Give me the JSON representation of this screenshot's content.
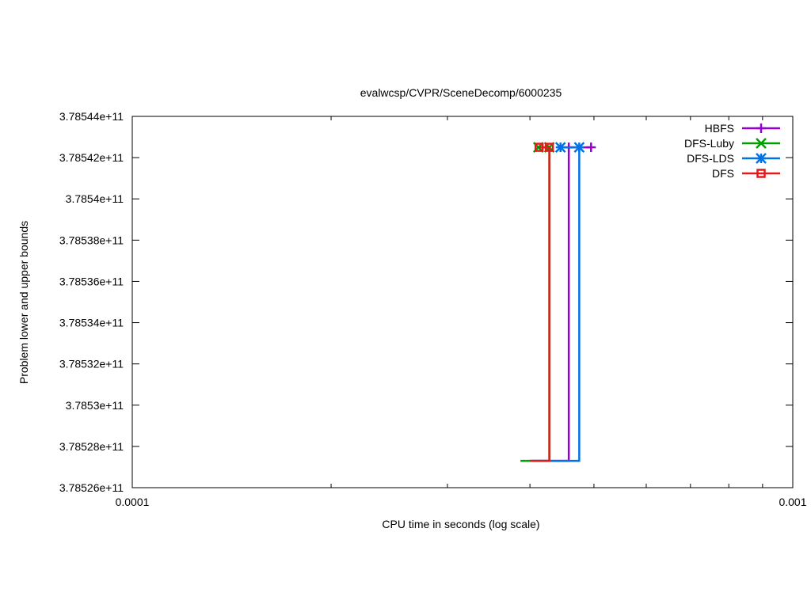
{
  "chart_data": {
    "type": "line",
    "title": "evalwcsp/CVPR/SceneDecomp/6000235",
    "xlabel": "CPU time in seconds (log scale)",
    "ylabel": "Problem lower and upper bounds",
    "x_scale": "log",
    "xlim": [
      0.0001,
      0.001
    ],
    "ylim": [
      378526000000,
      378544000000
    ],
    "x_ticks": [
      {
        "value": 0.0001,
        "label": "0.0001"
      },
      {
        "value": 0.001,
        "label": "0.001"
      }
    ],
    "y_ticks": [
      {
        "value": 378526000000,
        "label": "3.78526e+11"
      },
      {
        "value": 378528000000,
        "label": "3.78528e+11"
      },
      {
        "value": 378530000000,
        "label": "3.7853e+11"
      },
      {
        "value": 378532000000,
        "label": "3.78532e+11"
      },
      {
        "value": 378534000000,
        "label": "3.78534e+11"
      },
      {
        "value": 378536000000,
        "label": "3.78536e+11"
      },
      {
        "value": 378538000000,
        "label": "3.78538e+11"
      },
      {
        "value": 378540000000,
        "label": "3.7854e+11"
      },
      {
        "value": 378542000000,
        "label": "3.78542e+11"
      },
      {
        "value": 378544000000,
        "label": "3.78544e+11"
      }
    ],
    "legend_position": "top-right",
    "grid": false,
    "series": [
      {
        "name": "HBFS",
        "color": "#9400d3",
        "marker": "plus",
        "lower": [
          [
            0.0004,
            378527300000
          ],
          [
            0.000458,
            378527300000
          ]
        ],
        "upper": [
          [
            0.000458,
            378542500000
          ],
          [
            0.000495,
            378542500000
          ]
        ]
      },
      {
        "name": "DFS-Luby",
        "color": "#009e00",
        "marker": "cross",
        "lower": [
          [
            0.000387,
            378527300000
          ],
          [
            0.000428,
            378527300000
          ]
        ],
        "upper": [
          [
            0.000428,
            378542500000
          ],
          [
            0.000412,
            378542500000
          ]
        ]
      },
      {
        "name": "DFS-LDS",
        "color": "#0072e6",
        "marker": "star",
        "lower": [
          [
            0.000405,
            378527300000
          ],
          [
            0.000475,
            378527300000
          ]
        ],
        "upper": [
          [
            0.000475,
            378542500000
          ],
          [
            0.000445,
            378542500000
          ]
        ]
      },
      {
        "name": "DFS",
        "color": "#e31a1c",
        "marker": "square",
        "lower": [
          [
            0.0004,
            378527300000
          ],
          [
            0.000428,
            378527300000
          ]
        ],
        "upper": [
          [
            0.000428,
            378542500000
          ],
          [
            0.000413,
            378542500000
          ]
        ]
      }
    ]
  }
}
